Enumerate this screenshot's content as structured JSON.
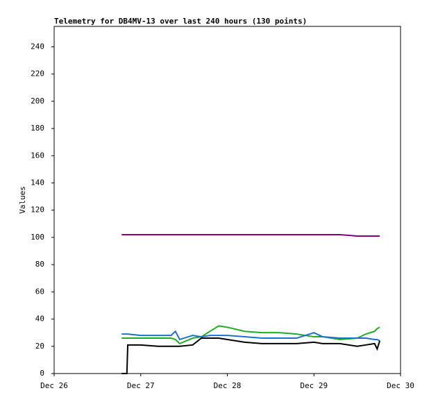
{
  "chart_data": {
    "type": "line",
    "title": "Telemetry for DB4MV-13 over last 240 hours (130 points)",
    "y_label": "Values",
    "x": [
      0.78,
      0.84,
      0.85,
      1.0,
      1.2,
      1.35,
      1.4,
      1.45,
      1.6,
      1.7,
      1.8,
      1.9,
      2.0,
      2.2,
      2.4,
      2.6,
      2.8,
      3.0,
      3.1,
      3.3,
      3.5,
      3.6,
      3.7,
      3.73,
      3.76
    ],
    "xlim": [
      0,
      4
    ],
    "xticks": [
      {
        "value": 0,
        "label": "Dec 26"
      },
      {
        "value": 1,
        "label": "Dec 27"
      },
      {
        "value": 2,
        "label": "Dec 28"
      },
      {
        "value": 3,
        "label": "Dec 29"
      },
      {
        "value": 4,
        "label": "Dec 30"
      }
    ],
    "ylim": [
      0,
      255
    ],
    "yticks": [
      0,
      20,
      40,
      60,
      80,
      100,
      120,
      140,
      160,
      180,
      200,
      220,
      240
    ],
    "series": [
      {
        "color": "#800080",
        "values": [
          102,
          102,
          102,
          102,
          102,
          102,
          102,
          102,
          102,
          102,
          102,
          102,
          102,
          102,
          102,
          102,
          102,
          102,
          102,
          102,
          101,
          101,
          101,
          101,
          101
        ]
      },
      {
        "color": "#22aa22",
        "values": [
          26,
          26,
          26,
          26,
          26,
          26,
          25,
          22,
          26,
          27,
          31,
          35,
          34,
          31,
          30,
          30,
          29,
          27,
          27,
          25,
          26,
          29,
          31,
          33,
          34
        ]
      },
      {
        "color": "#1e6fc8",
        "values": [
          29,
          29,
          29,
          28,
          28,
          28,
          31,
          25,
          28,
          27,
          28,
          28,
          28,
          27,
          26,
          26,
          26,
          30,
          27,
          26,
          26,
          26,
          25,
          25,
          24
        ]
      },
      {
        "color": "#000000",
        "values": [
          0,
          0,
          21,
          21,
          20,
          20,
          20,
          20,
          21,
          26,
          26,
          26,
          25,
          23,
          22,
          22,
          22,
          23,
          22,
          22,
          20,
          21,
          22,
          18,
          24
        ]
      }
    ]
  }
}
